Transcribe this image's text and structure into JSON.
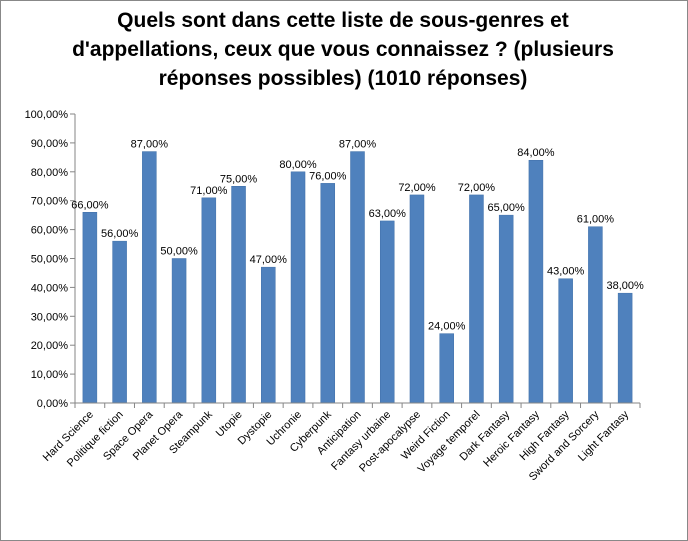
{
  "chart_data": {
    "type": "bar",
    "title": "Quels sont dans cette liste de sous-genres et d'appellations, ceux que vous connaissez ? (plusieurs réponses possibles) (1010 réponses)",
    "title_lines": [
      "Quels sont dans cette liste de sous-genres et",
      "d'appellations, ceux que vous connaissez ? (plusieurs",
      "réponses possibles) (1010 réponses)"
    ],
    "categories": [
      "Hard Science",
      "Politique fiction",
      "Space Opera",
      "Planet Opera",
      "Steampunk",
      "Utopie",
      "Dystopie",
      "Uchronie",
      "Cyberpunk",
      "Anticipation",
      "Fantasy urbaine",
      "Post-apocalypse",
      "Weird Fiction",
      "Voyage temporel",
      "Dark Fantasy",
      "Heroic Fantasy",
      "High Fantasy",
      "Sword and Sorcery",
      "Light Fantasy"
    ],
    "values": [
      66,
      56,
      87,
      50,
      71,
      75,
      47,
      80,
      76,
      87,
      63,
      72,
      24,
      72,
      65,
      84,
      43,
      61,
      38
    ],
    "value_labels": [
      "66,00%",
      "56,00%",
      "87,00%",
      "50,00%",
      "71,00%",
      "75,00%",
      "47,00%",
      "80,00%",
      "76,00%",
      "87,00%",
      "63,00%",
      "72,00%",
      "24,00%",
      "72,00%",
      "65,00%",
      "84,00%",
      "43,00%",
      "61,00%",
      "38,00%"
    ],
    "yticks": [
      "0,00%",
      "10,00%",
      "20,00%",
      "30,00%",
      "40,00%",
      "50,00%",
      "60,00%",
      "70,00%",
      "80,00%",
      "90,00%",
      "100,00%"
    ],
    "ylim": [
      0,
      100
    ],
    "grid": false,
    "legend": "none",
    "colors": {
      "bar": "#4f81bd",
      "bar_edge": "#3f6fa8",
      "axis": "#868686"
    }
  }
}
